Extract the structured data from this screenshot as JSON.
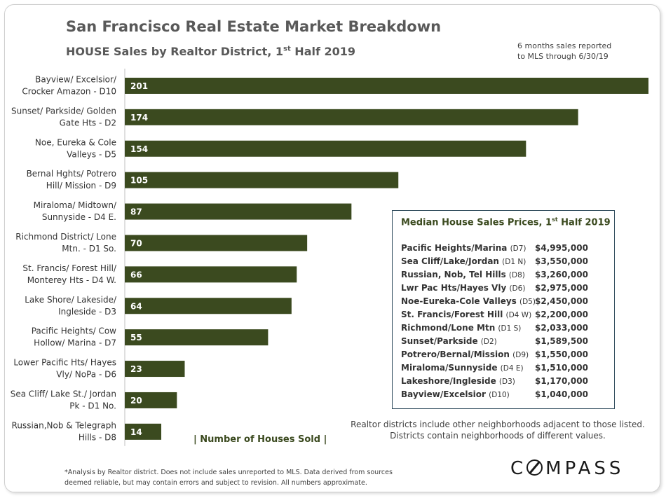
{
  "header": {
    "title": "San Francisco Real Estate Market Breakdown",
    "subtitle_main": "HOUSE Sales by Realtor District, 1",
    "subtitle_sup": "st",
    "subtitle_end": " Half 2019",
    "note_line1": "6 months sales reported",
    "note_line2": "to MLS through 6/30/19"
  },
  "chart_data": {
    "type": "bar",
    "orientation": "horizontal",
    "bar_color": "#3b4a1f",
    "legend_label": "| Number of Houses Sold |",
    "categories": [
      [
        "Bayview/ Excelsior/",
        "Crocker Amazon - D10"
      ],
      [
        "Sunset/ Parkside/ Golden",
        "Gate Hts - D2"
      ],
      [
        "Noe, Eureka & Cole",
        "Valleys - D5"
      ],
      [
        "Bernal Hghts/ Potrero",
        "Hill/ Mission - D9"
      ],
      [
        "Miraloma/ Midtown/",
        "Sunnyside - D4 E."
      ],
      [
        "Richmond District/ Lone",
        "Mtn. - D1 So."
      ],
      [
        "St. Francis/ Forest Hill/",
        "Monterey Hts - D4 W."
      ],
      [
        "Lake Shore/ Lakeside/",
        "Ingleside - D3"
      ],
      [
        "Pacific Heights/ Cow",
        "Hollow/ Marina - D7"
      ],
      [
        "Lower Pacific Hts/ Hayes",
        "Vly/ NoPa - D6"
      ],
      [
        "Sea Cliff/ Lake St./ Jordan",
        "Pk - D1 No."
      ],
      [
        "Russian,Nob & Telegraph",
        "Hills - D8"
      ]
    ],
    "values": [
      201,
      174,
      154,
      105,
      87,
      70,
      66,
      64,
      55,
      23,
      20,
      14
    ],
    "xlim": [
      0,
      201
    ]
  },
  "inset": {
    "title_main": "Median House Sales Prices, 1",
    "title_sup": "st",
    "title_end": " Half 2019",
    "rows": [
      {
        "district": "Pacific Heights/Marina ",
        "code": "(D7)",
        "price": "$4,995,000"
      },
      {
        "district": "Sea Cliff/Lake/Jordan ",
        "code": "(D1 N)",
        "price": "$3,550,000"
      },
      {
        "district": "Russian, Nob, Tel Hills ",
        "code": "(D8)",
        "price": "$3,260,000"
      },
      {
        "district": "Lwr Pac Hts/Hayes Vly ",
        "code": "(D6)",
        "price": "$2,975,000"
      },
      {
        "district": "Noe-Eureka-Cole Valleys ",
        "code": "(D5)",
        "price": "$2,450,000"
      },
      {
        "district": "St. Francis/Forest Hill ",
        "code": "(D4 W)",
        "price": "$2,200,000"
      },
      {
        "district": "Richmond/Lone Mtn ",
        "code": "(D1 S)",
        "price": "$2,033,000"
      },
      {
        "district": "Sunset/Parkside ",
        "code": "(D2)",
        "price": "$1,589,500"
      },
      {
        "district": "Potrero/Bernal/Mission ",
        "code": "(D9)",
        "price": "$1,550,000"
      },
      {
        "district": "Miraloma/Sunnyside ",
        "code": "(D4 E)",
        "price": "$1,510,000"
      },
      {
        "district": "Lakeshore/Ingleside ",
        "code": "(D3)",
        "price": "$1,170,000"
      },
      {
        "district": "Bayview/Excelsior ",
        "code": "(D10)",
        "price": "$1,040,000"
      }
    ]
  },
  "realtor_note": "Realtor districts include other neighborhoods adjacent to those listed. Districts contain neighborhoods of different values.",
  "footnote_line1": "*Analysis by Realtor district. Does not include sales unreported to MLS. Data derived from sources",
  "footnote_line2": "deemed reliable, but may contain errors and subject to revision. All numbers approximate.",
  "logo": {
    "prefix": "C",
    "suffix": "MPASS"
  }
}
